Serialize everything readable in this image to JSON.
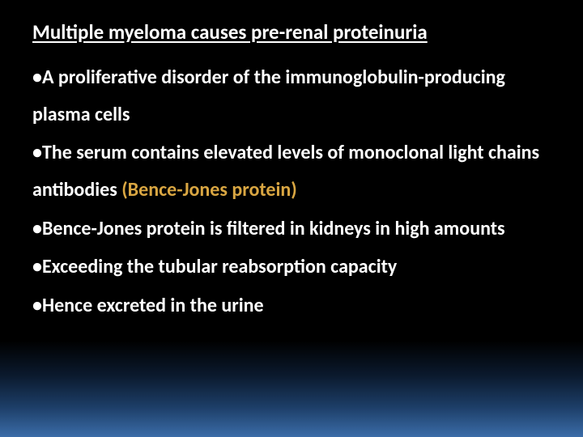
{
  "slide": {
    "background_gradient": [
      "#000000",
      "#000000",
      "#0b1a2e",
      "#1c3d66",
      "#3b6ca8"
    ],
    "text_color": "#ffffff",
    "highlight_color": "#d9a642",
    "font_family": "Calibri",
    "title": {
      "text": "Multiple myeloma causes pre-renal proteinuria",
      "fontsize": 25,
      "weight": 700,
      "underline": true
    },
    "bullets": [
      {
        "prefix": "•",
        "text_before": "A proliferative disorder of the immunoglobulin-producing plasma cells",
        "highlight": "",
        "text_after": ""
      },
      {
        "prefix": "•",
        "text_before": "The serum contains elevated levels of monoclonal light chains antibodies ",
        "highlight": "(Bence-Jones protein)",
        "text_after": ""
      },
      {
        "prefix": "•",
        "text_before": "Bence-Jones protein is filtered in kidneys in high amounts",
        "highlight": "",
        "text_after": ""
      },
      {
        "prefix": "•",
        "text_before": "Exceeding the tubular reabsorption capacity",
        "highlight": "",
        "text_after": ""
      },
      {
        "prefix": "•",
        "text_before": "Hence excreted in the urine",
        "highlight": "",
        "text_after": ""
      }
    ],
    "bullet_fontsize": 24,
    "bullet_weight": 700,
    "line_height": 1.9
  }
}
